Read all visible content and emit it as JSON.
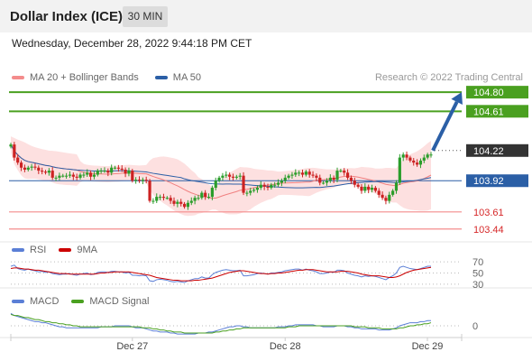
{
  "header": {
    "title": "Dollar Index (ICE)",
    "timeframe": "30 MIN"
  },
  "date_label": "Wednesday, December 28, 2022 9:44:18 PM CET",
  "legend": {
    "ma_bb": "MA 20 + Bollinger Bands",
    "ma_bb_color": "#f48c8c",
    "ma50": "MA 50",
    "ma50_color": "#2b5fa6",
    "copyright": "Research © 2022 Trading Central"
  },
  "rsi_legend": {
    "rsi": "RSI",
    "rsi_color": "#5b7fd6",
    "ma9": "9MA",
    "ma9_color": "#cc0000"
  },
  "macd_legend": {
    "macd": "MACD",
    "macd_color": "#5b7fd6",
    "signal": "MACD Signal",
    "signal_color": "#4aa020"
  },
  "colors": {
    "up": "#2a9d2a",
    "down": "#cc2222",
    "bb_fill": "#fde0e0",
    "resistance": "#4aa020",
    "support": "#f48c8c",
    "current": "#333333",
    "ma50_line": "#2b5fa6",
    "arrow": "#2b5fa6"
  },
  "chart_data": [
    {
      "type": "line",
      "title": "Dollar Index (ICE)",
      "y_domain": [
        103.375,
        104.855
      ],
      "x_tick_labels": [
        "Dec 27",
        "Dec 28",
        "Dec 29"
      ],
      "price_levels": [
        {
          "label": "104.80",
          "value": 104.8,
          "kind": "resistance"
        },
        {
          "label": "104.61",
          "value": 104.61,
          "kind": "resistance"
        },
        {
          "label": "104.22",
          "value": 104.22,
          "kind": "current"
        },
        {
          "label": "103.92",
          "value": 103.92,
          "kind": "ma50"
        },
        {
          "label": "103.61",
          "value": 103.61,
          "kind": "support"
        },
        {
          "label": "103.44",
          "value": 103.44,
          "kind": "support"
        }
      ],
      "forecast_arrow": {
        "from": 104.22,
        "to": 104.8
      },
      "close": [
        104.28,
        104.15,
        104.1,
        104.05,
        104.03,
        104.05,
        104.06,
        104.05,
        104.02,
        104.01,
        104.0,
        104.02,
        103.95,
        103.95,
        103.97,
        103.97,
        103.97,
        103.98,
        103.96,
        103.95,
        103.98,
        103.98,
        104.0,
        103.96,
        103.98,
        104.02,
        104.02,
        104.02,
        104.0,
        104.05,
        104.05,
        104.04,
        104.03,
        103.99,
        104.02,
        103.92,
        103.93,
        103.92,
        103.93,
        103.92,
        103.72,
        103.72,
        103.76,
        103.76,
        103.75,
        103.75,
        103.72,
        103.69,
        103.71,
        103.69,
        103.66,
        103.7,
        103.72,
        103.75,
        103.75,
        103.8,
        103.76,
        103.76,
        103.85,
        103.92,
        103.95,
        103.97,
        103.98,
        103.96,
        103.95,
        103.96,
        103.97,
        103.8,
        103.8,
        103.82,
        103.83,
        103.85,
        103.88,
        103.86,
        103.85,
        103.88,
        103.88,
        103.9,
        103.92,
        103.95,
        103.97,
        103.98,
        104.0,
        104.0,
        103.98,
        104.01,
        103.98,
        103.97,
        103.95,
        103.9,
        103.9,
        103.92,
        103.95,
        103.93,
        104.02,
        104.02,
        104.0,
        103.95,
        103.92,
        103.88,
        103.86,
        103.82,
        103.86,
        103.83,
        103.85,
        103.82,
        103.78,
        103.75,
        103.72,
        103.78,
        103.82,
        103.9,
        104.15,
        104.18,
        104.15,
        104.12,
        104.1,
        104.08,
        104.12,
        104.15,
        104.18,
        104.18
      ]
    },
    {
      "type": "line",
      "title": "RSI",
      "y_axis_ticks": [
        "70",
        "50",
        "30"
      ],
      "series": [
        {
          "name": "RSI",
          "values": [
            62,
            64,
            58,
            56,
            55,
            57,
            55,
            54,
            52,
            53,
            51,
            52,
            49,
            48,
            47,
            48,
            48,
            49,
            47,
            46,
            48,
            49,
            50,
            47,
            48,
            51,
            52,
            52,
            51,
            53,
            53,
            52,
            52,
            50,
            51,
            46,
            46,
            45,
            46,
            45,
            36,
            35,
            38,
            39,
            38,
            37,
            35,
            34,
            35,
            34,
            33,
            36,
            38,
            40,
            40,
            43,
            41,
            41,
            47,
            51,
            53,
            55,
            56,
            55,
            54,
            54,
            55,
            45,
            45,
            46,
            47,
            49,
            50,
            49,
            48,
            50,
            50,
            51,
            52,
            54,
            55,
            56,
            57,
            57,
            55,
            57,
            55,
            54,
            52,
            49,
            49,
            50,
            52,
            51,
            55,
            55,
            54,
            50,
            48,
            46,
            45,
            43,
            45,
            44,
            45,
            44,
            42,
            40,
            38,
            42,
            45,
            50,
            60,
            62,
            60,
            58,
            57,
            56,
            58,
            60,
            62,
            62
          ]
        },
        {
          "name": "9MA",
          "values": [
            58,
            59,
            59,
            58,
            57,
            57,
            56,
            55,
            55,
            54,
            53,
            52,
            51,
            50,
            49,
            49,
            49,
            48,
            48,
            48,
            48,
            48,
            48,
            48,
            48,
            49,
            50,
            50,
            51,
            51,
            52,
            52,
            52,
            52,
            52,
            51,
            50,
            49,
            48,
            47,
            46,
            44,
            42,
            41,
            40,
            39,
            38,
            37,
            37,
            36,
            36,
            36,
            36,
            37,
            37,
            38,
            39,
            40,
            41,
            43,
            45,
            47,
            49,
            51,
            52,
            53,
            54,
            54,
            53,
            52,
            51,
            50,
            49,
            49,
            48,
            49,
            49,
            50,
            50,
            51,
            52,
            53,
            54,
            55,
            55,
            56,
            56,
            56,
            55,
            54,
            53,
            52,
            52,
            52,
            52,
            53,
            53,
            53,
            52,
            51,
            50,
            48,
            47,
            46,
            45,
            45,
            45,
            44,
            43,
            42,
            42,
            43,
            45,
            48,
            51,
            53,
            55,
            56,
            57,
            58,
            59,
            60
          ]
        }
      ]
    },
    {
      "type": "line",
      "title": "MACD",
      "y_axis_ticks": [
        "0"
      ],
      "series": [
        {
          "name": "MACD",
          "values": [
            0.12,
            0.1,
            0.09,
            0.08,
            0.07,
            0.06,
            0.05,
            0.04,
            0.04,
            0.03,
            0.03,
            0.02,
            0.01,
            0.0,
            -0.01,
            -0.01,
            -0.02,
            -0.02,
            -0.02,
            -0.02,
            -0.02,
            -0.02,
            -0.02,
            -0.02,
            -0.02,
            -0.02,
            -0.01,
            -0.01,
            -0.01,
            -0.01,
            0.0,
            0.0,
            0.0,
            0.0,
            0.0,
            -0.01,
            -0.02,
            -0.02,
            -0.02,
            -0.03,
            -0.04,
            -0.05,
            -0.05,
            -0.06,
            -0.06,
            -0.06,
            -0.07,
            -0.07,
            -0.08,
            -0.08,
            -0.08,
            -0.08,
            -0.08,
            -0.08,
            -0.07,
            -0.07,
            -0.07,
            -0.06,
            -0.06,
            -0.05,
            -0.04,
            -0.03,
            -0.02,
            -0.01,
            -0.01,
            0.0,
            0.0,
            -0.01,
            -0.01,
            -0.02,
            -0.02,
            -0.02,
            -0.02,
            -0.02,
            -0.02,
            -0.02,
            -0.02,
            -0.01,
            -0.01,
            -0.01,
            0.0,
            0.0,
            0.01,
            0.01,
            0.01,
            0.01,
            0.01,
            0.01,
            0.0,
            0.0,
            -0.01,
            -0.01,
            -0.01,
            -0.01,
            0.0,
            0.0,
            0.0,
            -0.01,
            -0.01,
            -0.02,
            -0.02,
            -0.03,
            -0.03,
            -0.03,
            -0.03,
            -0.03,
            -0.04,
            -0.04,
            -0.04,
            -0.04,
            -0.03,
            -0.02,
            0.0,
            0.01,
            0.02,
            0.03,
            0.03,
            0.03,
            0.04,
            0.04,
            0.05,
            0.05
          ]
        },
        {
          "name": "MACD Signal",
          "values": [
            0.11,
            0.1,
            0.1,
            0.09,
            0.08,
            0.08,
            0.07,
            0.06,
            0.06,
            0.05,
            0.04,
            0.04,
            0.03,
            0.03,
            0.02,
            0.02,
            0.01,
            0.01,
            0.0,
            0.0,
            -0.01,
            -0.01,
            -0.01,
            -0.01,
            -0.01,
            -0.01,
            -0.01,
            -0.01,
            -0.01,
            -0.01,
            -0.01,
            -0.01,
            -0.01,
            -0.01,
            -0.01,
            -0.01,
            -0.01,
            -0.01,
            -0.02,
            -0.02,
            -0.02,
            -0.03,
            -0.03,
            -0.04,
            -0.04,
            -0.05,
            -0.05,
            -0.06,
            -0.06,
            -0.06,
            -0.07,
            -0.07,
            -0.07,
            -0.07,
            -0.07,
            -0.07,
            -0.07,
            -0.07,
            -0.07,
            -0.06,
            -0.06,
            -0.05,
            -0.05,
            -0.04,
            -0.04,
            -0.03,
            -0.03,
            -0.02,
            -0.02,
            -0.02,
            -0.02,
            -0.02,
            -0.02,
            -0.02,
            -0.02,
            -0.02,
            -0.02,
            -0.02,
            -0.02,
            -0.02,
            -0.01,
            -0.01,
            -0.01,
            0.0,
            0.0,
            0.0,
            0.0,
            0.0,
            0.0,
            0.0,
            0.0,
            0.0,
            0.0,
            0.0,
            0.0,
            0.0,
            0.0,
            0.0,
            0.0,
            -0.01,
            -0.01,
            -0.01,
            -0.01,
            -0.02,
            -0.02,
            -0.02,
            -0.02,
            -0.03,
            -0.03,
            -0.03,
            -0.03,
            -0.03,
            -0.02,
            -0.02,
            -0.01,
            0.0,
            0.0,
            0.01,
            0.01,
            0.02,
            0.02,
            0.03
          ]
        }
      ]
    }
  ]
}
